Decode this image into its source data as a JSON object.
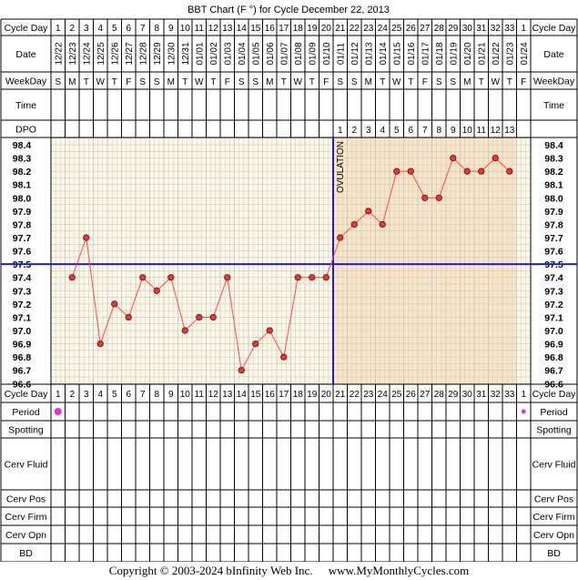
{
  "title": "BBT Chart (F °) for Cycle December 22, 2013",
  "footer": {
    "copyright": "Copyright © 2003-2024 bInfinity Web Inc.",
    "site": "www.MyMonthlyCycles.com"
  },
  "row_labels": {
    "cycle_day": "Cycle Day",
    "date": "Date",
    "weekday": "WeekDay",
    "time": "Time",
    "dpo": "DPO",
    "period": "Period",
    "spotting": "Spotting",
    "cerv_fluid": "Cerv Fluid",
    "cerv_pos": "Cerv Pos",
    "cerv_firm": "Cerv Firm",
    "cerv_opn": "Cerv Opn",
    "bd": "BD"
  },
  "colors": {
    "pre_ovulation_bg": "#fdf7e6",
    "post_ovulation_bg": "#fae6c6",
    "grid": "#c8c8c8",
    "temperature_line": "#ff4a4a",
    "marker_fill": "#e03a3a",
    "coverline": "#1a1ae0",
    "ovulation_line": "#1a1ae0",
    "period_dot": "#dd33dd"
  },
  "chart_data": {
    "type": "line",
    "cycle_days": [
      "1",
      "2",
      "3",
      "4",
      "5",
      "6",
      "7",
      "8",
      "9",
      "10",
      "11",
      "12",
      "13",
      "14",
      "15",
      "16",
      "17",
      "18",
      "19",
      "20",
      "21",
      "22",
      "23",
      "24",
      "25",
      "26",
      "27",
      "28",
      "29",
      "30",
      "31",
      "32",
      "33",
      "1"
    ],
    "dates": [
      "12/22",
      "12/23",
      "12/24",
      "12/25",
      "12/26",
      "12/27",
      "12/28",
      "12/29",
      "12/30",
      "12/31",
      "01/01",
      "01/02",
      "01/03",
      "01/04",
      "01/05",
      "01/06",
      "01/07",
      "01/08",
      "01/09",
      "01/10",
      "01/11",
      "01/12",
      "01/13",
      "01/14",
      "01/15",
      "01/16",
      "01/17",
      "01/18",
      "01/19",
      "01/20",
      "01/21",
      "01/22",
      "01/23",
      "01/24"
    ],
    "weekdays": [
      "S",
      "M",
      "T",
      "W",
      "T",
      "F",
      "S",
      "S",
      "M",
      "T",
      "W",
      "T",
      "F",
      "S",
      "S",
      "M",
      "T",
      "W",
      "T",
      "F",
      "S",
      "S",
      "M",
      "T",
      "W",
      "T",
      "F",
      "S",
      "S",
      "M",
      "T",
      "W",
      "T",
      "F"
    ],
    "dpo": [
      "",
      "",
      "",
      "",
      "",
      "",
      "",
      "",
      "",
      "",
      "",
      "",
      "",
      "",
      "",
      "",
      "",
      "",
      "",
      "",
      "1",
      "2",
      "3",
      "4",
      "5",
      "6",
      "7",
      "8",
      "9",
      "10",
      "11",
      "12",
      "13",
      ""
    ],
    "temperatures": [
      null,
      97.4,
      97.7,
      96.9,
      97.2,
      97.1,
      97.4,
      97.3,
      97.4,
      97.0,
      97.1,
      97.1,
      97.4,
      96.7,
      96.9,
      97.0,
      96.8,
      97.4,
      97.4,
      97.4,
      97.7,
      97.8,
      97.9,
      97.8,
      98.2,
      98.2,
      98.0,
      98.0,
      98.3,
      98.2,
      98.2,
      98.3,
      98.2,
      null
    ],
    "y_ticks": [
      "98.4",
      "98.3",
      "98.2",
      "98.1",
      "98.0",
      "97.9",
      "97.8",
      "97.7",
      "97.6",
      "97.5",
      "97.4",
      "97.3",
      "97.2",
      "97.1",
      "97.0",
      "96.9",
      "96.8",
      "96.7",
      "96.6"
    ],
    "ylim": [
      96.6,
      98.4
    ],
    "coverline": 97.5,
    "ovulation_day_index": 20,
    "ovulation_label": "OVULATION",
    "period_days": [
      1,
      34
    ]
  }
}
